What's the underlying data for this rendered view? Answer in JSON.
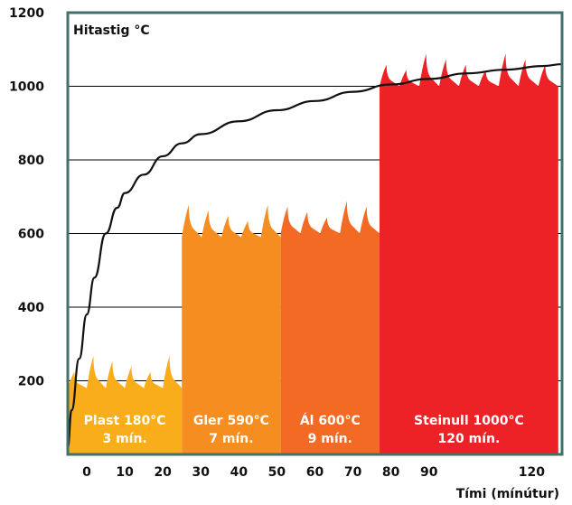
{
  "chart_data": {
    "type": "bar",
    "title": "",
    "ylabel": "Hitastig °C",
    "xlabel": "Tími (mínútur)",
    "ylim": [
      0,
      1200
    ],
    "xlim": [
      -5,
      125
    ],
    "grid": true,
    "x_ticks": [
      0,
      10,
      20,
      30,
      40,
      50,
      60,
      70,
      80,
      90,
      120
    ],
    "y_ticks": [
      200,
      400,
      600,
      800,
      1000,
      1200
    ],
    "bars": [
      {
        "name": "Plast 180°C",
        "duration": "3 mín.",
        "value": 180,
        "x_start": -5,
        "x_end": 25,
        "color": "#f9ad1b"
      },
      {
        "name": "Gler 590°C",
        "duration": "7 mín.",
        "value": 590,
        "x_start": 25,
        "x_end": 51,
        "color": "#f68d20"
      },
      {
        "name": "Ál 600°C",
        "duration": "9 mín.",
        "value": 600,
        "x_start": 51,
        "x_end": 77,
        "color": "#f26a24"
      },
      {
        "name": "Steinull 1000°C",
        "duration": "120 mín.",
        "value": 1000,
        "x_start": 77,
        "x_end": 124,
        "color": "#ec2227"
      }
    ],
    "curve": {
      "x": [
        -5,
        -4,
        -2,
        0,
        2,
        5,
        8,
        10,
        15,
        20,
        25,
        30,
        40,
        50,
        60,
        70,
        80,
        90,
        100,
        110,
        120,
        125
      ],
      "y": [
        20,
        120,
        260,
        380,
        480,
        600,
        670,
        710,
        760,
        810,
        845,
        870,
        905,
        935,
        960,
        985,
        1005,
        1020,
        1035,
        1045,
        1055,
        1060
      ]
    },
    "colors": {
      "frame": "#44706a",
      "grid": "#000000",
      "curve": "#111111",
      "bar_text": "#ffffff"
    }
  }
}
